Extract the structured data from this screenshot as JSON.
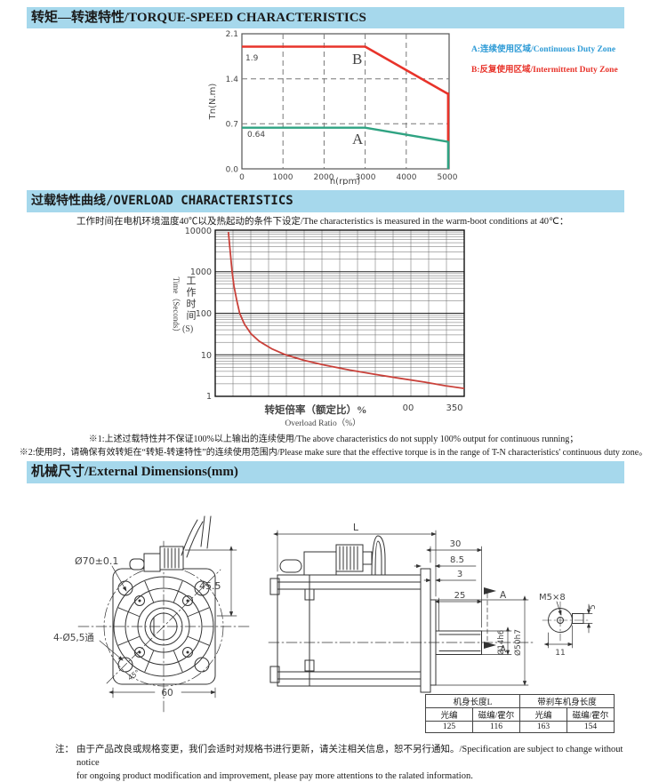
{
  "page": {
    "header_bg": "#a6d8ec",
    "section1_title": "转矩—转速特性/TORQUE-SPEED CHARACTERISTICS",
    "section2_title": "过载特性曲线/OVERLOAD CHARACTERISTICS",
    "section3_title": "机械尺寸/External Dimensions(mm)"
  },
  "ts_chart": {
    "ylabel": "Tn(N.m)",
    "xlabel": "n(rpm)",
    "y_ticks": [
      "2.1",
      "1.4",
      "0.7",
      "0.0"
    ],
    "x_ticks": [
      "0",
      "1000",
      "2000",
      "3000",
      "4000",
      "5000"
    ],
    "b_label": "B",
    "a_label": "A",
    "b_value": "1.9",
    "a_value": "0.64",
    "legend_a": "A:连续使用区域/Continuous Duty Zone",
    "legend_b": "B:反复使用区域/Intermittent Duty Zone",
    "legend_a_color": "#2e9bd6",
    "legend_b_color": "#e8332a"
  },
  "ol_chart": {
    "subtitle": "工作时间在电机环境温度40℃以及热起动的条件下设定/The characteristics is measured in the warm-boot conditions at 40℃：",
    "y_ticks": [
      "10000",
      "1000",
      "100",
      "10",
      "1"
    ],
    "x_tick_1": "00",
    "x_tick_2": "350",
    "xlabel_cn": "转矩倍率（额定比）%",
    "xlabel_en": "Overload Ratio（%）",
    "ylabel_en": "Time（Seconds）",
    "ylabel_cn": "工作时间",
    "ylabel_unit": "(S)",
    "note1": "※1:上述过载特性并不保证100%以上输出的连续使用/The above characteristics do not supply 100% output for continuous running；",
    "note2": "※2:使用时，请确保有效转矩在“转矩-转速特性”的连续使用范围内/Please make sure that the effective torque is in the range of T-N characteristics' continuous duty zone。"
  },
  "chart_data": [
    {
      "type": "line",
      "title": "Torque-Speed characteristics",
      "xlabel": "n(rpm)",
      "ylabel": "Tn(N.m)",
      "xlim": [
        0,
        5400
      ],
      "ylim": [
        0,
        2.1
      ],
      "x_ticks": [
        0,
        1000,
        2000,
        3000,
        4000,
        5000
      ],
      "y_ticks": [
        0.0,
        0.7,
        1.4,
        2.1
      ],
      "grid": "dashed",
      "legend_position": "right",
      "series": [
        {
          "name": "B",
          "zone": "Intermittent Duty Zone",
          "color": "#e8332a",
          "rated": 1.9,
          "points": [
            [
              0,
              1.9
            ],
            [
              3000,
              1.9
            ],
            [
              5000,
              1.17
            ],
            [
              5020,
              1.17
            ],
            [
              5020,
              0.42
            ]
          ]
        },
        {
          "name": "A",
          "zone": "Continuous Duty Zone",
          "color": "#2fa382",
          "rated": 0.64,
          "points": [
            [
              0,
              0.64
            ],
            [
              3000,
              0.64
            ],
            [
              5020,
              0.42
            ],
            [
              5020,
              0.0
            ]
          ]
        }
      ]
    },
    {
      "type": "line",
      "title": "Overload characteristics",
      "xlabel": "Overload Ratio (%)",
      "ylabel": "Time (Seconds)",
      "x_scale": "linear",
      "y_scale": "log",
      "xlim": [
        95,
        360
      ],
      "ylim": [
        1,
        10000
      ],
      "x_tick_labels": [
        "00",
        "350"
      ],
      "y_ticks": [
        1,
        10,
        100,
        1000,
        10000
      ],
      "grid": "log-minor",
      "series": [
        {
          "name": "overload",
          "color": "#c9413a",
          "points": [
            [
              109,
              9000
            ],
            [
              111,
              3000
            ],
            [
              113,
              1000
            ],
            [
              115,
              450
            ],
            [
              118,
              200
            ],
            [
              121,
              100
            ],
            [
              126,
              55
            ],
            [
              133,
              32
            ],
            [
              142,
              21
            ],
            [
              155,
              14
            ],
            [
              170,
              10
            ],
            [
              190,
              7.3
            ],
            [
              212,
              5.6
            ],
            [
              238,
              4.3
            ],
            [
              265,
              3.4
            ],
            [
              292,
              2.7
            ],
            [
              318,
              2.2
            ],
            [
              340,
              1.8
            ],
            [
              360,
              1.55
            ]
          ]
        }
      ]
    }
  ],
  "front_view": {
    "bolt_circle": "Ø70±0.1",
    "height": "45.5",
    "holes": "4-Ø5,5通",
    "angle": "45°",
    "width": "60"
  },
  "side_view": {
    "length": "L",
    "shaft_total": "30",
    "dim_85": "8.5",
    "dim_3": "3",
    "shaft_len": "25",
    "section_a1": "A",
    "section_a2": "A",
    "shaft_dia": "Ø14h6",
    "spigot_dia": "Ø50h7",
    "key_thread": "M5×8",
    "key_height": "5",
    "key_width": "11"
  },
  "dims_table": {
    "group_headers": [
      "机身长度L",
      "带刹车机身长度"
    ],
    "col_headers": [
      "光编",
      "磁编/霍尔",
      "光编",
      "磁编/霍尔"
    ],
    "values": [
      "125",
      "116",
      "163",
      "154"
    ]
  },
  "footer": {
    "label": "注：",
    "line1": "由于产品改良或规格变更，我们会适时对规格书进行更新，请关注相关信息，恕不另行通知。/Specification are subject to change without notice",
    "line2": "for ongoing product modification and improvement, please pay more attentions to the ralated information."
  }
}
